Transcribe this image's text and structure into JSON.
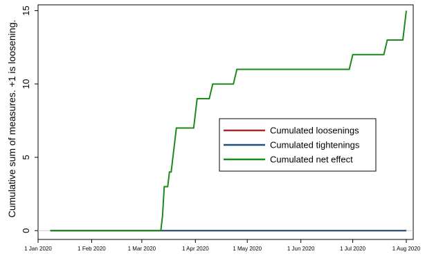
{
  "chart_data": {
    "type": "line",
    "ylabel": "Cumulative sum of measures. +1 is loosening.",
    "xlabel": "",
    "x_range": [
      "2020-01-01",
      "2020-08-05"
    ],
    "ylim": [
      -0.6,
      15.4
    ],
    "y_ticks": [
      0,
      5,
      10,
      15
    ],
    "x_ticks": [
      {
        "date": "2020-01-01",
        "label": "1 Jan 2020"
      },
      {
        "date": "2020-02-01",
        "label": "1 Feb 2020"
      },
      {
        "date": "2020-03-01",
        "label": "1 Mar 2020"
      },
      {
        "date": "2020-04-01",
        "label": "1 Apr 2020"
      },
      {
        "date": "2020-05-01",
        "label": "1 May 2020"
      },
      {
        "date": "2020-06-01",
        "label": "1 Jun 2020"
      },
      {
        "date": "2020-07-01",
        "label": "1 Jul 2020"
      },
      {
        "date": "2020-08-01",
        "label": "1 Aug 2020"
      }
    ],
    "grid": "horizontal line at 0",
    "legend_position": "center-right",
    "series": [
      {
        "name": "Cumulated loosenings",
        "color": "#9e2a2a",
        "points": [
          [
            "2020-01-08",
            0
          ],
          [
            "2020-08-01",
            0
          ]
        ]
      },
      {
        "name": "Cumulated tightenings",
        "color": "#1f4e79",
        "points": [
          [
            "2020-01-08",
            0
          ],
          [
            "2020-08-01",
            0
          ]
        ]
      },
      {
        "name": "Cumulated net effect",
        "color": "#1a8a1a",
        "points": [
          [
            "2020-01-08",
            0
          ],
          [
            "2020-03-12",
            0
          ],
          [
            "2020-03-13",
            1
          ],
          [
            "2020-03-14",
            3
          ],
          [
            "2020-03-16",
            3
          ],
          [
            "2020-03-17",
            4
          ],
          [
            "2020-03-18",
            4
          ],
          [
            "2020-03-19",
            5
          ],
          [
            "2020-03-21",
            7
          ],
          [
            "2020-03-31",
            7
          ],
          [
            "2020-04-02",
            9
          ],
          [
            "2020-04-09",
            9
          ],
          [
            "2020-04-11",
            10
          ],
          [
            "2020-04-23",
            10
          ],
          [
            "2020-04-25",
            11
          ],
          [
            "2020-06-29",
            11
          ],
          [
            "2020-07-01",
            12
          ],
          [
            "2020-07-19",
            12
          ],
          [
            "2020-07-21",
            13
          ],
          [
            "2020-07-30",
            13
          ],
          [
            "2020-08-01",
            15
          ]
        ]
      }
    ]
  }
}
